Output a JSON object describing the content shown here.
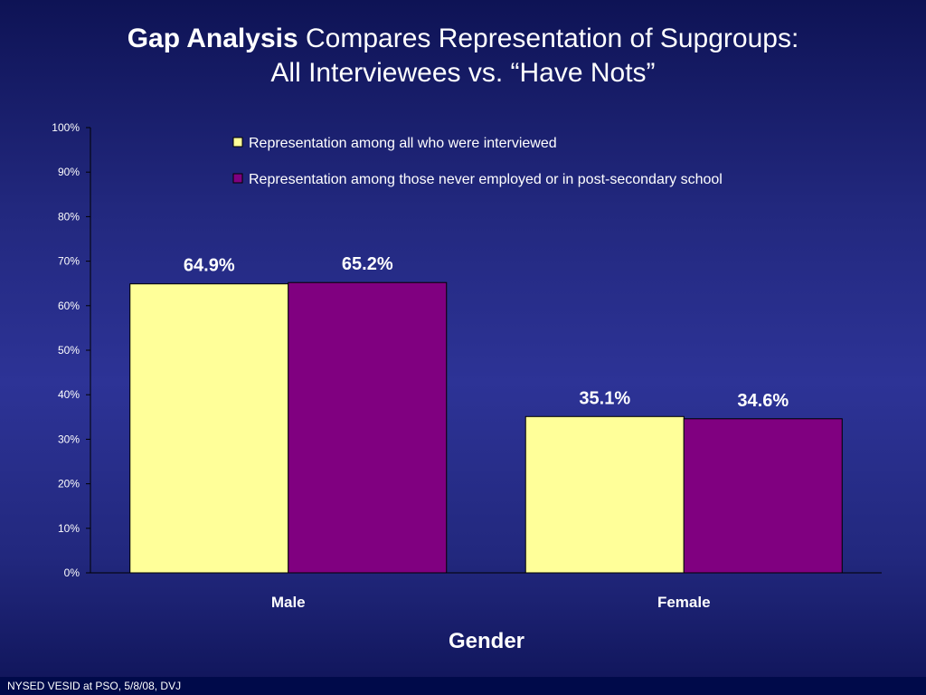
{
  "slide": {
    "title_bold": "Gap Analysis",
    "title_rest": " Compares Representation of Supgroups:",
    "title_line2": "All Interviewees  vs.  “Have Nots”",
    "footer": "NYSED VESID at PSO, 5/8/08, DVJ"
  },
  "chart_data": {
    "type": "bar",
    "categories": [
      "Male",
      "Female"
    ],
    "series": [
      {
        "name": "Representation among all who were interviewed",
        "values": [
          64.9,
          35.1
        ],
        "labels": [
          "64.9%",
          "35.1%"
        ],
        "color": "#ffff99"
      },
      {
        "name": "Representation among those never employed or in post-secondary school",
        "values": [
          65.2,
          34.6
        ],
        "labels": [
          "65.2%",
          "34.6%"
        ],
        "color": "#800080"
      }
    ],
    "xlabel": "Gender",
    "ylabel": "",
    "ylim": [
      0,
      100
    ],
    "yticks": [
      "0%",
      "10%",
      "20%",
      "30%",
      "40%",
      "50%",
      "60%",
      "70%",
      "80%",
      "90%",
      "100%"
    ],
    "grid": false,
    "legend_position": "top-right"
  }
}
